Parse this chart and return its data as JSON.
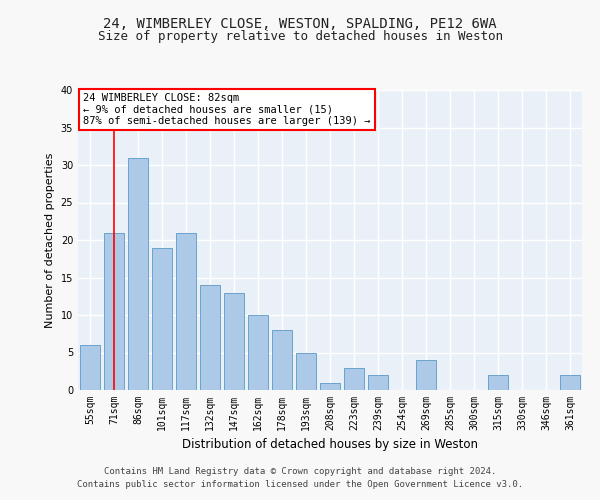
{
  "title1": "24, WIMBERLEY CLOSE, WESTON, SPALDING, PE12 6WA",
  "title2": "Size of property relative to detached houses in Weston",
  "xlabel": "Distribution of detached houses by size in Weston",
  "ylabel": "Number of detached properties",
  "categories": [
    "55sqm",
    "71sqm",
    "86sqm",
    "101sqm",
    "117sqm",
    "132sqm",
    "147sqm",
    "162sqm",
    "178sqm",
    "193sqm",
    "208sqm",
    "223sqm",
    "239sqm",
    "254sqm",
    "269sqm",
    "285sqm",
    "300sqm",
    "315sqm",
    "330sqm",
    "346sqm",
    "361sqm"
  ],
  "values": [
    6,
    21,
    31,
    19,
    21,
    14,
    13,
    10,
    8,
    5,
    1,
    3,
    2,
    0,
    4,
    0,
    0,
    2,
    0,
    0,
    2
  ],
  "bar_color": "#adc9e8",
  "bar_edge_color": "#5a9ac8",
  "background_color": "#eaf0f8",
  "grid_color": "#ffffff",
  "annotation_box_text": "24 WIMBERLEY CLOSE: 82sqm\n← 9% of detached houses are smaller (15)\n87% of semi-detached houses are larger (139) →",
  "redline_x": 1.0,
  "ylim": [
    0,
    40
  ],
  "yticks": [
    0,
    5,
    10,
    15,
    20,
    25,
    30,
    35,
    40
  ],
  "footer1": "Contains HM Land Registry data © Crown copyright and database right 2024.",
  "footer2": "Contains public sector information licensed under the Open Government Licence v3.0.",
  "title1_fontsize": 10,
  "title2_fontsize": 9,
  "xlabel_fontsize": 8.5,
  "ylabel_fontsize": 8,
  "tick_fontsize": 7,
  "annotation_fontsize": 7.5,
  "footer_fontsize": 6.5
}
